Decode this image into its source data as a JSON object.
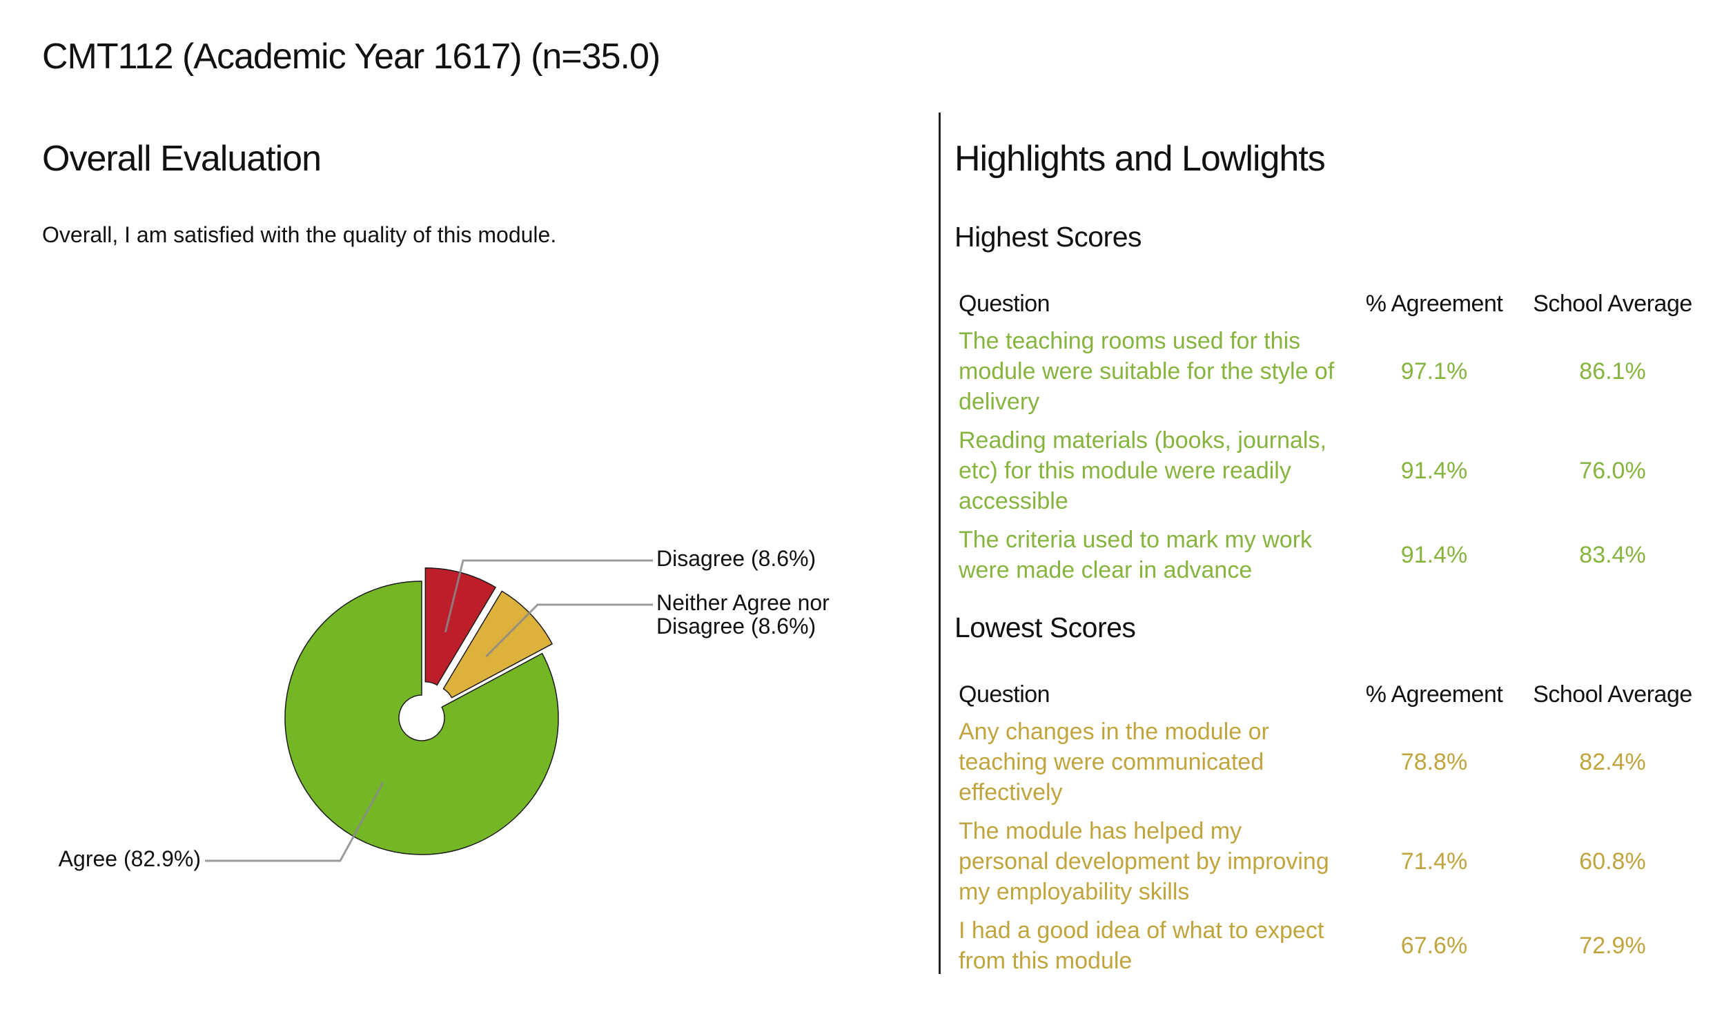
{
  "page": {
    "title": "CMT112 (Academic Year 1617) (n=35.0)"
  },
  "overall": {
    "heading": "Overall Evaluation",
    "question": "Overall, I am satisfied with the quality of this module."
  },
  "chart_data": {
    "type": "pie",
    "donut_hole": true,
    "slices": [
      {
        "label": "Disagree",
        "value": 8.6,
        "label_text": "Disagree (8.6%)",
        "color": "#bd1f2a"
      },
      {
        "label": "Neither Agree nor Disagree",
        "value": 8.6,
        "label_lines": [
          "Neither Agree nor",
          "Disagree (8.6%)"
        ],
        "color": "#dcb13c"
      },
      {
        "label": "Agree",
        "value": 82.9,
        "label_text": "Agree (82.9%)",
        "color": "#75b627"
      }
    ]
  },
  "highlights": {
    "heading": "Highlights and Lowlights",
    "columns": {
      "question": "Question",
      "agreement": "% Agreement",
      "school_average": "School Average"
    },
    "highest": {
      "title": "Highest Scores",
      "color": "#86b43f",
      "rows": [
        {
          "question": "The teaching rooms used for this module were suitable for the style of delivery",
          "agreement": "97.1%",
          "school_average": "86.1%"
        },
        {
          "question": "Reading materials (books, journals, etc) for this module were readily accessible",
          "agreement": "91.4%",
          "school_average": "76.0%"
        },
        {
          "question": "The criteria used to mark my work were made clear in advance",
          "agreement": "91.4%",
          "school_average": "83.4%"
        }
      ]
    },
    "lowest": {
      "title": "Lowest Scores",
      "color": "#c0a53e",
      "rows": [
        {
          "question": "Any changes in the module or teaching were communicated effectively",
          "agreement": "78.8%",
          "school_average": "82.4%"
        },
        {
          "question": "The module has helped my personal development by improving my employability skills",
          "agreement": "71.4%",
          "school_average": "60.8%"
        },
        {
          "question": "I had a good idea of what to expect from this module",
          "agreement": "67.6%",
          "school_average": "72.9%"
        }
      ]
    }
  }
}
